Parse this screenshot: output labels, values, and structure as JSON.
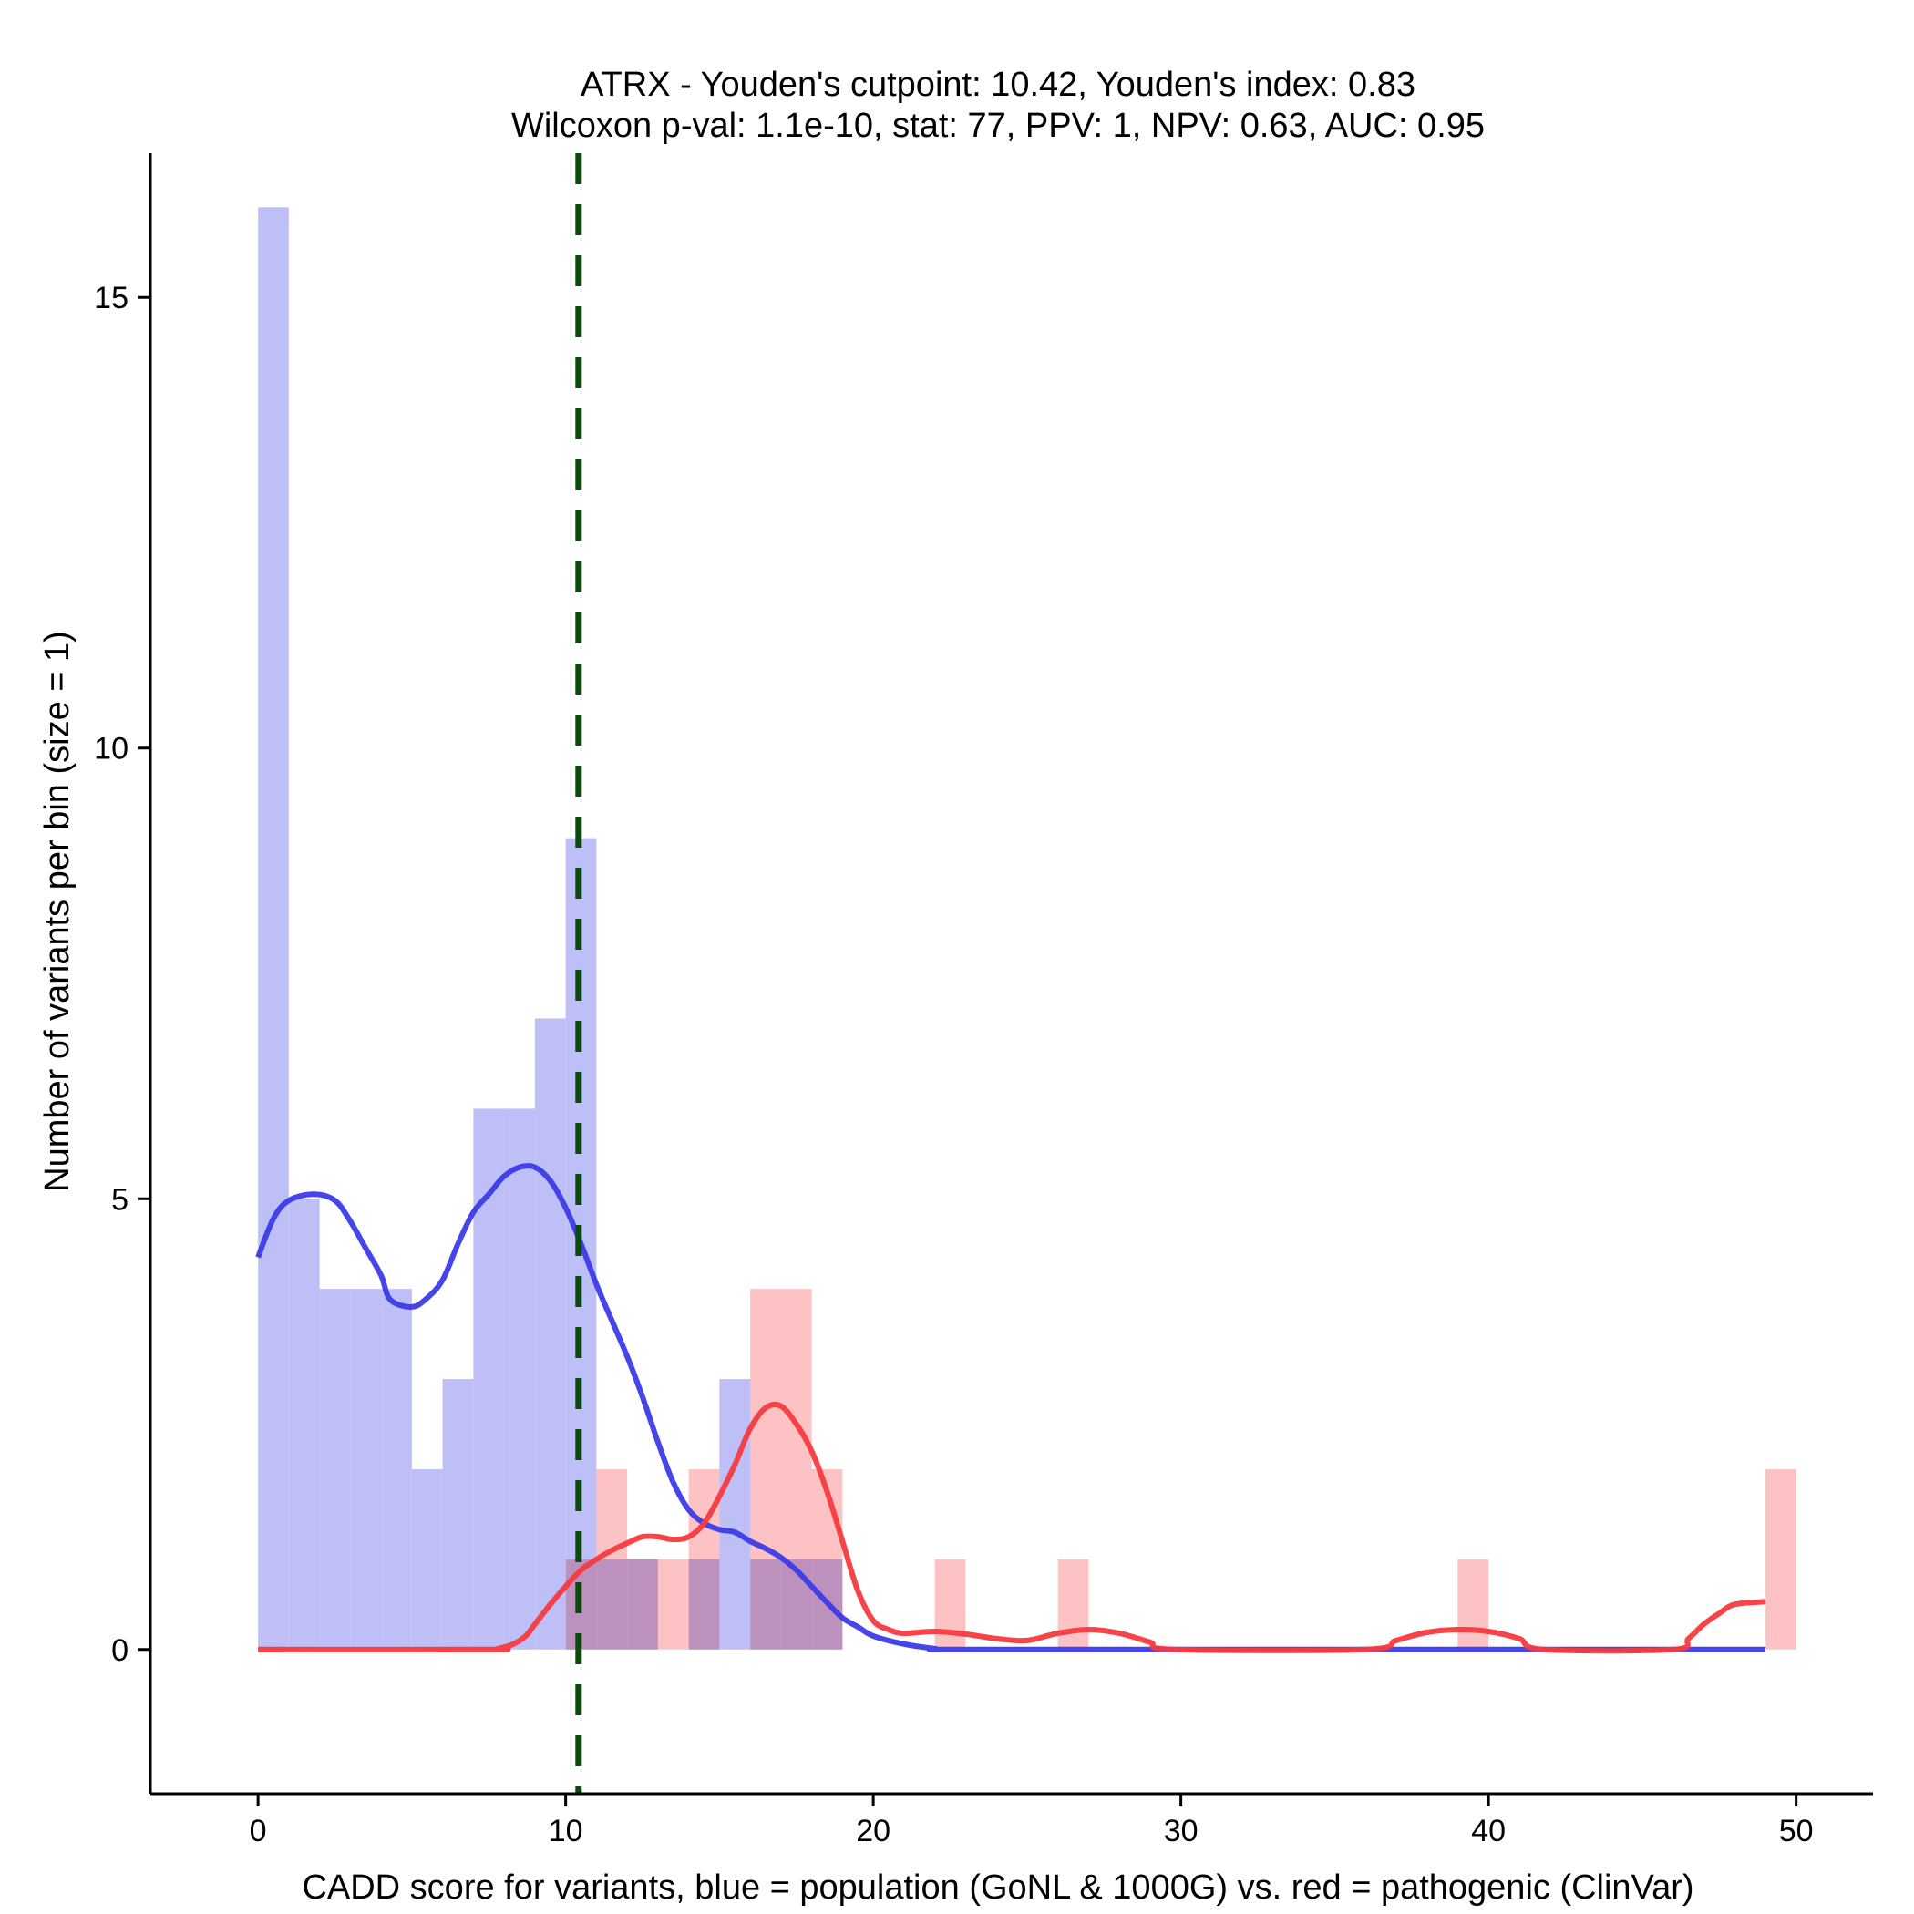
{
  "chart_data": {
    "type": "bar",
    "title": "ATRX - Youden's cutpoint: 10.42, Youden's index: 0.83",
    "subtitle": "Wilcoxon p-val: 1.1e-10, stat: 77, PPV: 1, NPV: 0.63, AUC: 0.95",
    "xlabel": "CADD score for variants, blue = population (GoNL & 1000G) vs. red = pathogenic (ClinVar)",
    "ylabel": "Number of variants per bin (size = 1)",
    "xlim": [
      -3.5,
      52.5
    ],
    "ylim": [
      -1.6,
      16.6
    ],
    "x_ticks": [
      0,
      10,
      20,
      30,
      40,
      50
    ],
    "y_ticks": [
      0,
      5,
      10,
      15
    ],
    "bin_width": 1,
    "cutpoint": 10.42,
    "colors": {
      "population_bar": "#bfbff8",
      "pathogenic_bar": "#fcbfc1",
      "population_line": "#3b3be8",
      "pathogenic_line": "#f63a3f",
      "cutpoint_line": "#0a4a0a"
    },
    "series": [
      {
        "color_key": "population",
        "bins": [
          {
            "x": 0,
            "count": 16
          },
          {
            "x": 1,
            "count": 5
          },
          {
            "x": 2,
            "count": 4
          },
          {
            "x": 3,
            "count": 4
          },
          {
            "x": 4,
            "count": 4
          },
          {
            "x": 5,
            "count": 2
          },
          {
            "x": 6,
            "count": 3
          },
          {
            "x": 7,
            "count": 6
          },
          {
            "x": 8,
            "count": 6
          },
          {
            "x": 9,
            "count": 7
          },
          {
            "x": 10,
            "count": 9
          },
          {
            "x": 11,
            "count": 1
          },
          {
            "x": 12,
            "count": 1
          },
          {
            "x": 14,
            "count": 1
          },
          {
            "x": 15,
            "count": 3
          },
          {
            "x": 16,
            "count": 1
          },
          {
            "x": 17,
            "count": 1
          },
          {
            "x": 18,
            "count": 1
          }
        ],
        "density": [
          [
            0,
            4.35
          ],
          [
            0.5,
            4.78
          ],
          [
            1,
            4.98
          ],
          [
            1.8,
            5.05
          ],
          [
            2.5,
            4.98
          ],
          [
            3,
            4.75
          ],
          [
            3.5,
            4.45
          ],
          [
            4,
            4.15
          ],
          [
            4.3,
            3.88
          ],
          [
            5,
            3.8
          ],
          [
            5.5,
            3.9
          ],
          [
            6,
            4.1
          ],
          [
            6.5,
            4.5
          ],
          [
            7,
            4.85
          ],
          [
            7.5,
            5.05
          ],
          [
            8,
            5.25
          ],
          [
            8.5,
            5.35
          ],
          [
            9,
            5.35
          ],
          [
            9.5,
            5.2
          ],
          [
            10,
            4.9
          ],
          [
            10.5,
            4.5
          ],
          [
            11,
            4.05
          ],
          [
            11.5,
            3.65
          ],
          [
            12,
            3.25
          ],
          [
            12.5,
            2.8
          ],
          [
            13,
            2.3
          ],
          [
            13.5,
            1.85
          ],
          [
            14,
            1.55
          ],
          [
            14.5,
            1.4
          ],
          [
            15,
            1.33
          ],
          [
            15.5,
            1.3
          ],
          [
            16,
            1.2
          ],
          [
            16.5,
            1.12
          ],
          [
            17,
            1.02
          ],
          [
            17.5,
            0.88
          ],
          [
            18,
            0.7
          ],
          [
            18.5,
            0.52
          ],
          [
            19,
            0.35
          ],
          [
            19.5,
            0.25
          ],
          [
            20,
            0.15
          ],
          [
            21,
            0.06
          ],
          [
            22,
            0.01
          ],
          [
            22.5,
            0
          ],
          [
            30,
            0
          ],
          [
            40,
            0
          ],
          [
            49,
            0
          ]
        ]
      },
      {
        "color_key": "pathogenic",
        "bins": [
          {
            "x": 10,
            "count": 1
          },
          {
            "x": 11,
            "count": 2
          },
          {
            "x": 12,
            "count": 1
          },
          {
            "x": 13,
            "count": 1
          },
          {
            "x": 14,
            "count": 2
          },
          {
            "x": 16,
            "count": 4
          },
          {
            "x": 17,
            "count": 4
          },
          {
            "x": 18,
            "count": 2
          },
          {
            "x": 22,
            "count": 1
          },
          {
            "x": 26,
            "count": 1
          },
          {
            "x": 39,
            "count": 1
          },
          {
            "x": 49,
            "count": 2
          }
        ],
        "density": [
          [
            0,
            0
          ],
          [
            7.5,
            0
          ],
          [
            7.8,
            0.01
          ],
          [
            8.3,
            0.06
          ],
          [
            8.7,
            0.15
          ],
          [
            9,
            0.28
          ],
          [
            9.5,
            0.5
          ],
          [
            10,
            0.7
          ],
          [
            10.5,
            0.88
          ],
          [
            11,
            1.0
          ],
          [
            11.5,
            1.1
          ],
          [
            12,
            1.18
          ],
          [
            12.5,
            1.25
          ],
          [
            13,
            1.25
          ],
          [
            13.5,
            1.22
          ],
          [
            14,
            1.25
          ],
          [
            14.5,
            1.4
          ],
          [
            15,
            1.7
          ],
          [
            15.5,
            2.05
          ],
          [
            16,
            2.45
          ],
          [
            16.5,
            2.68
          ],
          [
            17,
            2.7
          ],
          [
            17.5,
            2.5
          ],
          [
            18,
            2.2
          ],
          [
            18.5,
            1.75
          ],
          [
            19,
            1.2
          ],
          [
            19.5,
            0.65
          ],
          [
            20,
            0.32
          ],
          [
            20.5,
            0.22
          ],
          [
            21,
            0.18
          ],
          [
            22,
            0.2
          ],
          [
            23,
            0.17
          ],
          [
            24,
            0.12
          ],
          [
            25,
            0.1
          ],
          [
            26,
            0.18
          ],
          [
            27,
            0.22
          ],
          [
            28,
            0.18
          ],
          [
            29,
            0.08
          ],
          [
            29.8,
            0
          ],
          [
            36,
            0
          ],
          [
            37,
            0.1
          ],
          [
            38,
            0.19
          ],
          [
            39,
            0.22
          ],
          [
            40,
            0.2
          ],
          [
            41,
            0.12
          ],
          [
            41.8,
            0
          ],
          [
            46,
            0
          ],
          [
            46.5,
            0.12
          ],
          [
            47,
            0.28
          ],
          [
            47.5,
            0.4
          ],
          [
            48,
            0.5
          ],
          [
            49,
            0.53
          ]
        ]
      }
    ]
  }
}
